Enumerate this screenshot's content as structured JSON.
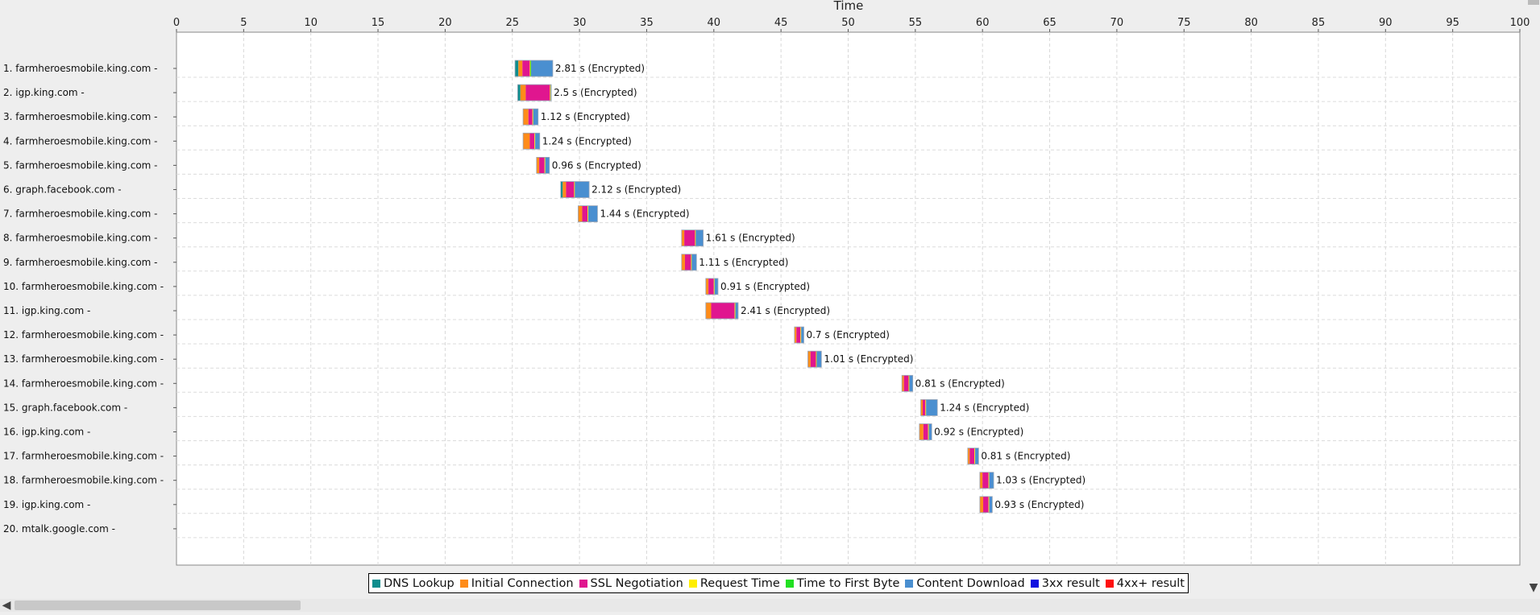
{
  "chart_data": {
    "type": "bar",
    "title": "",
    "xlabel": "Time",
    "ylabel": "",
    "xlim": [
      0,
      100
    ],
    "x_ticks": [
      0,
      5,
      10,
      15,
      20,
      25,
      30,
      35,
      40,
      45,
      50,
      55,
      60,
      65,
      70,
      75,
      80,
      85,
      90,
      95,
      100
    ],
    "grid": true,
    "legend_position": "bottom",
    "legend": [
      {
        "key": "dns",
        "label": "DNS Lookup",
        "color": "#0f8e8e"
      },
      {
        "key": "connect",
        "label": "Initial Connection",
        "color": "#ff8c1a"
      },
      {
        "key": "ssl",
        "label": "SSL Negotiation",
        "color": "#e0168f"
      },
      {
        "key": "request",
        "label": "Request Time",
        "color": "#ffee00"
      },
      {
        "key": "ttfb",
        "label": "Time to First Byte",
        "color": "#22e022"
      },
      {
        "key": "download",
        "label": "Content Download",
        "color": "#4a8fd0"
      },
      {
        "key": "r3xx",
        "label": "3xx result",
        "color": "#1010e0"
      },
      {
        "key": "r4xx",
        "label": "4xx+ result",
        "color": "#ff1010"
      }
    ],
    "rows": [
      {
        "label": "1. farmheroesmobile.king.com -",
        "start": 25.2,
        "duration_label": "2.81 s (Encrypted)",
        "segments": [
          [
            "dns",
            0.25
          ],
          [
            "connect",
            0.3
          ],
          [
            "ssl",
            0.55
          ],
          [
            "request",
            0.05
          ],
          [
            "ttfb",
            0.05
          ],
          [
            "download",
            1.61
          ]
        ]
      },
      {
        "label": "2. igp.king.com -",
        "start": 25.4,
        "duration_label": "2.5 s (Encrypted)",
        "segments": [
          [
            "dns",
            0.2
          ],
          [
            "connect",
            0.4
          ],
          [
            "ssl",
            1.8
          ],
          [
            "request",
            0.05
          ],
          [
            "download",
            0.05
          ]
        ]
      },
      {
        "label": "3. farmheroesmobile.king.com -",
        "start": 25.8,
        "duration_label": "1.12 s (Encrypted)",
        "segments": [
          [
            "connect",
            0.4
          ],
          [
            "ssl",
            0.3
          ],
          [
            "request",
            0.05
          ],
          [
            "download",
            0.37
          ]
        ]
      },
      {
        "label": "4. farmheroesmobile.king.com -",
        "start": 25.8,
        "duration_label": "1.24 s (Encrypted)",
        "segments": [
          [
            "connect",
            0.5
          ],
          [
            "ssl",
            0.35
          ],
          [
            "request",
            0.05
          ],
          [
            "download",
            0.34
          ]
        ]
      },
      {
        "label": "5. farmheroesmobile.king.com -",
        "start": 26.8,
        "duration_label": "0.96 s (Encrypted)",
        "segments": [
          [
            "connect",
            0.2
          ],
          [
            "ssl",
            0.4
          ],
          [
            "request",
            0.05
          ],
          [
            "download",
            0.31
          ]
        ]
      },
      {
        "label": "6. graph.facebook.com -",
        "start": 28.6,
        "duration_label": "2.12 s (Encrypted)",
        "segments": [
          [
            "dns",
            0.15
          ],
          [
            "connect",
            0.25
          ],
          [
            "ssl",
            0.6
          ],
          [
            "request",
            0.05
          ],
          [
            "download",
            1.07
          ]
        ]
      },
      {
        "label": "7. farmheroesmobile.king.com -",
        "start": 29.9,
        "duration_label": "1.44 s (Encrypted)",
        "segments": [
          [
            "connect",
            0.3
          ],
          [
            "ssl",
            0.4
          ],
          [
            "request",
            0.05
          ],
          [
            "download",
            0.69
          ]
        ]
      },
      {
        "label": "8. farmheroesmobile.king.com -",
        "start": 37.6,
        "duration_label": "1.61 s (Encrypted)",
        "segments": [
          [
            "connect",
            0.2
          ],
          [
            "ssl",
            0.8
          ],
          [
            "request",
            0.05
          ],
          [
            "download",
            0.56
          ]
        ]
      },
      {
        "label": "9. farmheroesmobile.king.com -",
        "start": 37.6,
        "duration_label": "1.11 s (Encrypted)",
        "segments": [
          [
            "connect",
            0.25
          ],
          [
            "ssl",
            0.45
          ],
          [
            "request",
            0.05
          ],
          [
            "download",
            0.36
          ]
        ]
      },
      {
        "label": "10. farmheroesmobile.king.com -",
        "start": 39.4,
        "duration_label": "0.91 s (Encrypted)",
        "segments": [
          [
            "connect",
            0.2
          ],
          [
            "ssl",
            0.4
          ],
          [
            "request",
            0.05
          ],
          [
            "download",
            0.26
          ]
        ]
      },
      {
        "label": "11. igp.king.com -",
        "start": 39.4,
        "duration_label": "2.41 s (Encrypted)",
        "segments": [
          [
            "connect",
            0.4
          ],
          [
            "ssl",
            1.75
          ],
          [
            "request",
            0.05
          ],
          [
            "download",
            0.21
          ]
        ]
      },
      {
        "label": "12. farmheroesmobile.king.com -",
        "start": 46.0,
        "duration_label": "0.7 s (Encrypted)",
        "segments": [
          [
            "connect",
            0.15
          ],
          [
            "ssl",
            0.3
          ],
          [
            "request",
            0.05
          ],
          [
            "download",
            0.2
          ]
        ]
      },
      {
        "label": "13. farmheroesmobile.king.com -",
        "start": 47.0,
        "duration_label": "1.01 s (Encrypted)",
        "segments": [
          [
            "connect",
            0.2
          ],
          [
            "ssl",
            0.4
          ],
          [
            "request",
            0.05
          ],
          [
            "download",
            0.36
          ]
        ]
      },
      {
        "label": "14. farmheroesmobile.king.com -",
        "start": 54.0,
        "duration_label": "0.81 s (Encrypted)",
        "segments": [
          [
            "connect",
            0.15
          ],
          [
            "ssl",
            0.35
          ],
          [
            "request",
            0.05
          ],
          [
            "download",
            0.26
          ]
        ]
      },
      {
        "label": "15. graph.facebook.com -",
        "start": 55.4,
        "duration_label": "1.24 s (Encrypted)",
        "segments": [
          [
            "connect",
            0.15
          ],
          [
            "ssl",
            0.2
          ],
          [
            "request",
            0.05
          ],
          [
            "download",
            0.84
          ]
        ]
      },
      {
        "label": "16. igp.king.com -",
        "start": 55.3,
        "duration_label": "0.92 s (Encrypted)",
        "segments": [
          [
            "connect",
            0.3
          ],
          [
            "ssl",
            0.35
          ],
          [
            "request",
            0.05
          ],
          [
            "download",
            0.22
          ]
        ]
      },
      {
        "label": "17. farmheroesmobile.king.com -",
        "start": 58.9,
        "duration_label": "0.81 s (Encrypted)",
        "segments": [
          [
            "connect",
            0.15
          ],
          [
            "ssl",
            0.35
          ],
          [
            "request",
            0.05
          ],
          [
            "download",
            0.26
          ]
        ]
      },
      {
        "label": "18. farmheroesmobile.king.com -",
        "start": 59.8,
        "duration_label": "1.03 s (Encrypted)",
        "segments": [
          [
            "connect",
            0.2
          ],
          [
            "ssl",
            0.45
          ],
          [
            "request",
            0.05
          ],
          [
            "download",
            0.33
          ]
        ]
      },
      {
        "label": "19. igp.king.com -",
        "start": 59.8,
        "duration_label": "0.93 s (Encrypted)",
        "segments": [
          [
            "connect",
            0.25
          ],
          [
            "ssl",
            0.4
          ],
          [
            "request",
            0.05
          ],
          [
            "download",
            0.23
          ]
        ]
      },
      {
        "label": "20. mtalk.google.com -",
        "start": null,
        "duration_label": "",
        "segments": []
      }
    ]
  },
  "icons": {
    "scroll_left": "◀",
    "scroll_down": "▼"
  }
}
